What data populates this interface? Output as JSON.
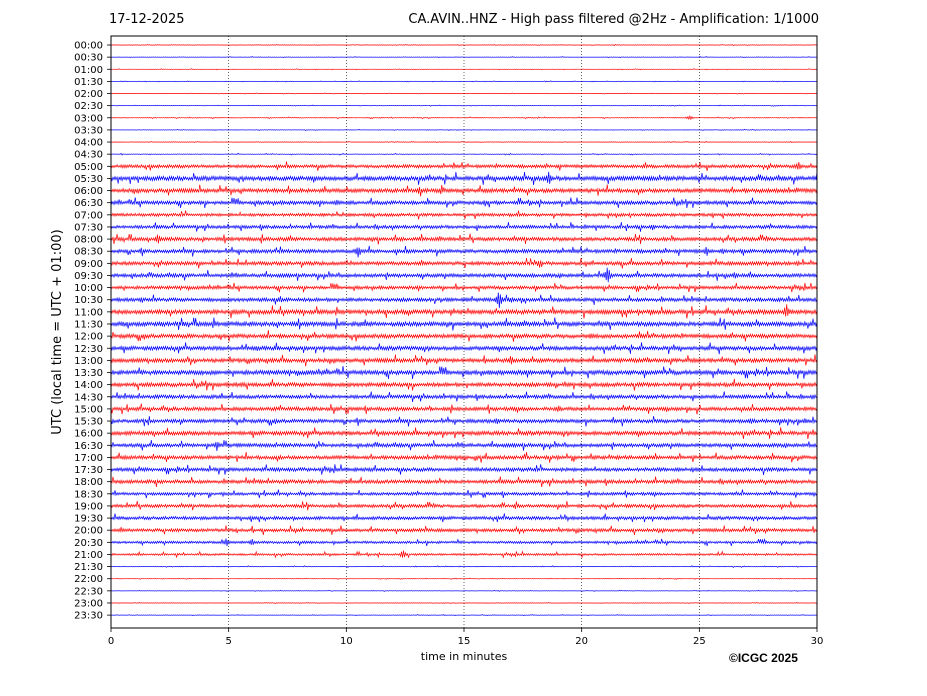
{
  "header": {
    "date": "17-12-2025",
    "title": "CA.AVIN..HNZ - High pass filtered @2Hz - Amplification: 1/1000"
  },
  "footer": {
    "copyright": "©ICGC 2025"
  },
  "chart_data": {
    "type": "line",
    "title": "CA.AVIN..HNZ - High pass filtered @2Hz - Amplification: 1/1000",
    "xlabel": "time in minutes",
    "ylabel": "UTC (local time = UTC + 01:00)",
    "xlim": [
      0,
      30
    ],
    "xticks": [
      0,
      5,
      10,
      15,
      20,
      25,
      30
    ],
    "vertical_gridlines": [
      5,
      10,
      15,
      20,
      25
    ],
    "grid_style": "dotted",
    "colors": {
      "even_rows": "#ff0000",
      "odd_rows": "#0000ff"
    },
    "rows": [
      "00:00",
      "00:30",
      "01:00",
      "01:30",
      "02:00",
      "02:30",
      "03:00",
      "03:30",
      "04:00",
      "04:30",
      "05:00",
      "05:30",
      "06:00",
      "06:30",
      "07:00",
      "07:30",
      "08:00",
      "08:30",
      "09:00",
      "09:30",
      "10:00",
      "10:30",
      "11:00",
      "11:30",
      "12:00",
      "12:30",
      "13:00",
      "13:30",
      "14:00",
      "14:30",
      "15:00",
      "15:30",
      "16:00",
      "16:30",
      "17:00",
      "17:30",
      "18:00",
      "18:30",
      "19:00",
      "19:30",
      "20:00",
      "20:30",
      "21:00",
      "21:30",
      "22:00",
      "22:30",
      "23:00",
      "23:30"
    ],
    "noise_level": [
      0.2,
      0.2,
      0.2,
      0.2,
      0.2,
      0.2,
      0.3,
      0.2,
      0.2,
      0.3,
      1.6,
      2.2,
      2.0,
      1.8,
      1.5,
      1.6,
      1.8,
      1.8,
      1.8,
      1.8,
      1.6,
      1.8,
      2.2,
      2.2,
      2.0,
      2.0,
      2.0,
      2.2,
      2.0,
      1.8,
      1.8,
      1.8,
      2.0,
      1.8,
      1.8,
      1.8,
      1.8,
      1.4,
      1.6,
      1.6,
      1.6,
      1.2,
      1.0,
      0.3,
      0.2,
      0.2,
      0.2,
      0.2
    ],
    "events": [
      {
        "row": "03:00",
        "minute": 24.6,
        "amplitude": 3
      },
      {
        "row": "05:00",
        "minute": 29.2,
        "amplitude": 6
      },
      {
        "row": "05:30",
        "minute": 18.6,
        "amplitude": 8
      },
      {
        "row": "06:00",
        "minute": 13.1,
        "amplitude": 5
      },
      {
        "row": "06:00",
        "minute": 14.0,
        "amplitude": 4
      },
      {
        "row": "06:30",
        "minute": 9.6,
        "amplitude": 4
      },
      {
        "row": "06:30",
        "minute": 15.9,
        "amplitude": 4
      },
      {
        "row": "07:30",
        "minute": 23.0,
        "amplitude": 4
      },
      {
        "row": "08:00",
        "minute": 2.0,
        "amplitude": 6
      },
      {
        "row": "08:00",
        "minute": 12.3,
        "amplitude": 3
      },
      {
        "row": "08:30",
        "minute": 10.5,
        "amplitude": 8
      },
      {
        "row": "08:30",
        "minute": 25.3,
        "amplitude": 6
      },
      {
        "row": "08:30",
        "minute": 26.0,
        "amplitude": 4
      },
      {
        "row": "09:00",
        "minute": 18.2,
        "amplitude": 5
      },
      {
        "row": "09:00",
        "minute": 29.2,
        "amplitude": 3
      },
      {
        "row": "09:30",
        "minute": 21.1,
        "amplitude": 11
      },
      {
        "row": "09:30",
        "minute": 26.5,
        "amplitude": 4
      },
      {
        "row": "10:30",
        "minute": 1.3,
        "amplitude": 4
      },
      {
        "row": "10:30",
        "minute": 7.2,
        "amplitude": 4
      },
      {
        "row": "10:30",
        "minute": 16.5,
        "amplitude": 11
      },
      {
        "row": "10:30",
        "minute": 17.0,
        "amplitude": 4
      },
      {
        "row": "11:00",
        "minute": 28.7,
        "amplitude": 9
      },
      {
        "row": "11:00",
        "minute": 21.8,
        "amplitude": 3
      },
      {
        "row": "12:00",
        "minute": 4.6,
        "amplitude": 3
      },
      {
        "row": "12:00",
        "minute": 14.9,
        "amplitude": 3
      },
      {
        "row": "12:00",
        "minute": 20.4,
        "amplitude": 4
      },
      {
        "row": "12:30",
        "minute": 6.2,
        "amplitude": 4
      },
      {
        "row": "13:00",
        "minute": 17.0,
        "amplitude": 6
      },
      {
        "row": "14:00",
        "minute": 19.3,
        "amplitude": 3
      },
      {
        "row": "14:30",
        "minute": 29.8,
        "amplitude": 3
      },
      {
        "row": "15:00",
        "minute": 19.0,
        "amplitude": 5
      },
      {
        "row": "15:00",
        "minute": 29.5,
        "amplitude": 3
      },
      {
        "row": "15:30",
        "minute": 16.4,
        "amplitude": 4
      },
      {
        "row": "15:30",
        "minute": 27.2,
        "amplitude": 4
      },
      {
        "row": "15:30",
        "minute": 29.5,
        "amplitude": 4
      },
      {
        "row": "16:30",
        "minute": 4.5,
        "amplitude": 6
      },
      {
        "row": "17:00",
        "minute": 19.0,
        "amplitude": 3
      },
      {
        "row": "17:30",
        "minute": 24.7,
        "amplitude": 3
      },
      {
        "row": "20:30",
        "minute": 4.9,
        "amplitude": 5
      },
      {
        "row": "20:30",
        "minute": 6.0,
        "amplitude": 4
      },
      {
        "row": "21:00",
        "minute": 12.4,
        "amplitude": 5
      }
    ]
  }
}
